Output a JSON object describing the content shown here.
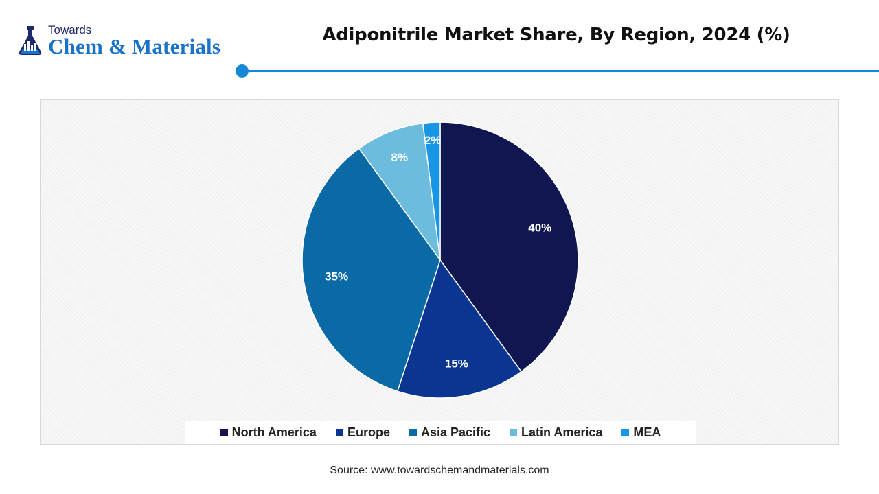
{
  "brand": {
    "top": "Towards",
    "main": "Chem & Materials"
  },
  "chart_data": {
    "type": "pie",
    "title": "Adiponitrile Market Share, By Region, 2024 (%)",
    "categories": [
      "North America",
      "Europe",
      "Asia Pacific",
      "Latin America",
      "MEA"
    ],
    "values": [
      40,
      15,
      35,
      8,
      2
    ],
    "labels": [
      "40%",
      "15%",
      "35%",
      "8%",
      "2%"
    ],
    "colors": [
      "#0f1650",
      "#0a3590",
      "#0a6aa6",
      "#6cbcde",
      "#1796e6"
    ],
    "label_colors": [
      "#ffffff",
      "#ffffff",
      "#ffffff",
      "#ffffff",
      "#ffffff"
    ],
    "legend_position": "bottom",
    "start_angle": "top, clockwise"
  },
  "source": "Source: www.towardschemandmaterials.com"
}
